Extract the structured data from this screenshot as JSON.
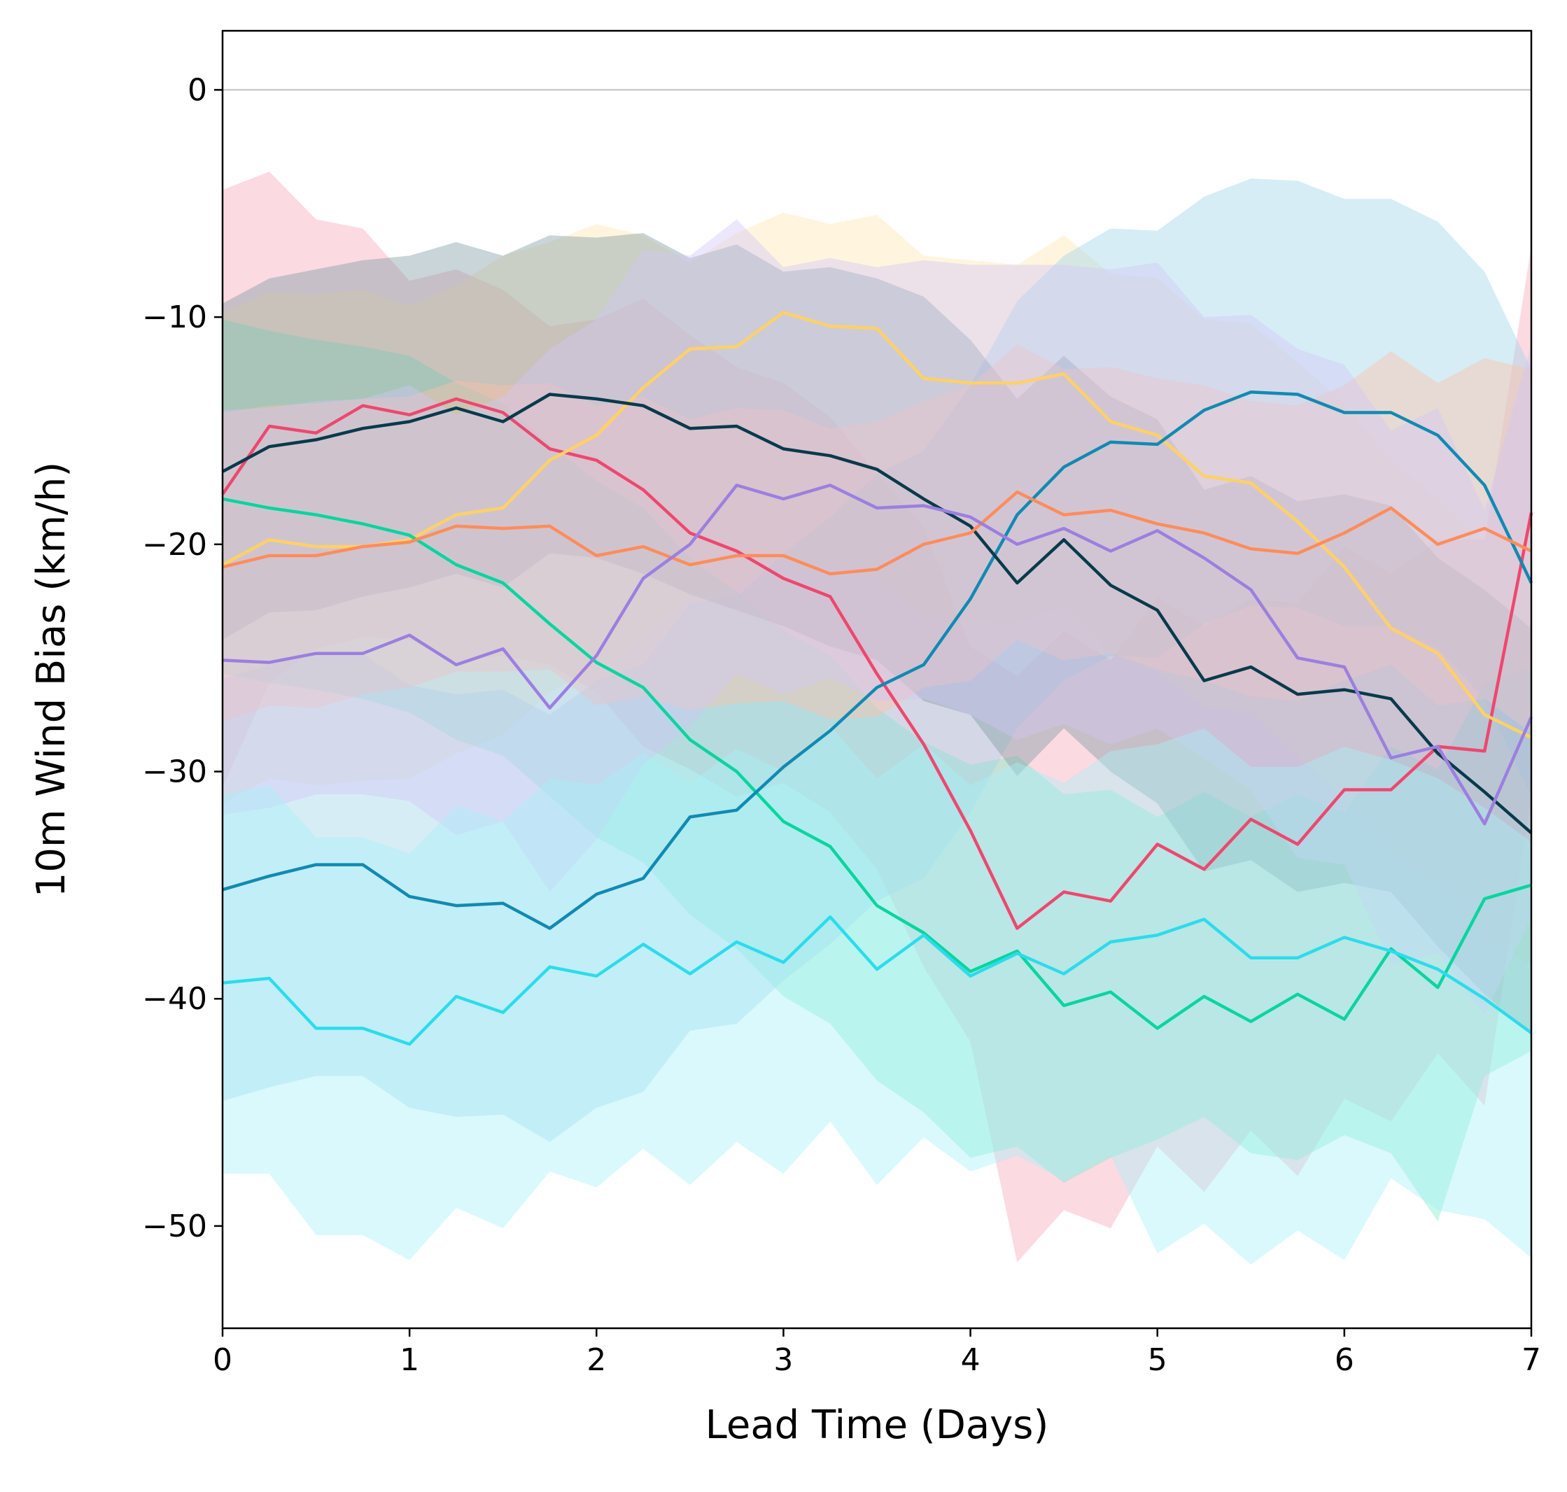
{
  "chart_data": {
    "type": "line",
    "title": "",
    "xlabel": "Lead Time (Days)",
    "ylabel": "10m Wind Bias (km/h)",
    "xlim": [
      0,
      7
    ],
    "ylim": [
      -54.5,
      2.6
    ],
    "xticks": [
      0,
      1,
      2,
      3,
      4,
      5,
      6,
      7
    ],
    "xtick_labels": [
      "0",
      "1",
      "2",
      "3",
      "4",
      "5",
      "6",
      "7"
    ],
    "yticks": [
      0,
      -10,
      -20,
      -30,
      -40,
      -50
    ],
    "ytick_labels": [
      "0",
      "−10",
      "−20",
      "−30",
      "−40",
      "−50"
    ],
    "zero_line": {
      "y": 0,
      "color": "#c0c0c0"
    },
    "grid": false,
    "legend": "none",
    "x": [
      0,
      0.25,
      0.5,
      0.75,
      1,
      1.25,
      1.5,
      1.75,
      2,
      2.25,
      2.5,
      2.75,
      3,
      3.25,
      3.5,
      3.75,
      4,
      4.25,
      4.5,
      4.75,
      5,
      5.25,
      5.5,
      5.75,
      6,
      6.25,
      6.5,
      6.75,
      7
    ],
    "series": [
      {
        "color": "#ef476f",
        "band_color": "#f7a8ba",
        "values": [
          -17.8,
          -14.8,
          -15.1,
          -13.9,
          -14.3,
          -13.6,
          -14.2,
          -15.8,
          -16.3,
          -17.6,
          -19.5,
          -20.3,
          -21.5,
          -22.3,
          -25.7,
          -28.8,
          -32.6,
          -36.9,
          -35.3,
          -35.7,
          -33.2,
          -34.3,
          -32.1,
          -33.2,
          -30.8,
          -30.8,
          -28.9,
          -29.1,
          -18.6
        ],
        "upper": [
          -4.4,
          -3.6,
          -5.7,
          -6.1,
          -8.4,
          -7.9,
          -8.8,
          -10.4,
          -10.1,
          -9.2,
          -10.8,
          -12.2,
          -12.9,
          -14.4,
          -16.9,
          -19.2,
          -24.5,
          -25.8,
          -23.8,
          -25.1,
          -22.3,
          -23.6,
          -22.4,
          -22.6,
          -20.1,
          -21.3,
          -19.8,
          -19.8,
          -6.9
        ],
        "lower": [
          -30.7,
          -26.1,
          -24.6,
          -24.1,
          -24.2,
          -25.2,
          -24.9,
          -25.3,
          -26.5,
          -28.9,
          -29.9,
          -31.1,
          -30.5,
          -31.8,
          -34.3,
          -38.6,
          -41.9,
          -51.6,
          -49.3,
          -50.1,
          -46.5,
          -48.5,
          -45.8,
          -47.8,
          -44.4,
          -45.4,
          -42.4,
          -44.7,
          -31.2
        ]
      },
      {
        "color": "#ffd166",
        "band_color": "#ffe8b3",
        "values": [
          -20.9,
          -19.8,
          -20.1,
          -20.1,
          -19.8,
          -18.7,
          -18.4,
          -16.3,
          -15.2,
          -13.1,
          -11.4,
          -11.3,
          -9.8,
          -10.4,
          -10.5,
          -12.7,
          -12.9,
          -12.9,
          -12.5,
          -14.6,
          -15.2,
          -17.0,
          -17.3,
          -19.0,
          -21.0,
          -23.7,
          -24.8,
          -27.5,
          -28.5
        ],
        "upper": [
          -9.8,
          -8.9,
          -9.0,
          -8.8,
          -9.5,
          -8.6,
          -7.3,
          -6.7,
          -5.9,
          -6.4,
          -7.6,
          -6.3,
          -5.4,
          -5.9,
          -5.5,
          -7.3,
          -7.5,
          -7.7,
          -6.4,
          -8.1,
          -8.3,
          -10.1,
          -10.3,
          -12.0,
          -13.8,
          -16.3,
          -18.0,
          -19.9,
          -18.9
        ],
        "lower": [
          -31.4,
          -30.3,
          -30.6,
          -30.4,
          -30.3,
          -29.2,
          -28.4,
          -26.5,
          -25.5,
          -24.1,
          -22.3,
          -21.9,
          -20.5,
          -21.0,
          -21.5,
          -23.2,
          -23.4,
          -23.5,
          -22.7,
          -24.8,
          -25.6,
          -27.2,
          -27.4,
          -29.3,
          -31.2,
          -33.6,
          -34.9,
          -37.4,
          -38.5
        ]
      },
      {
        "color": "#06d6a0",
        "band_color": "#7eecc8",
        "values": [
          -18.0,
          -18.4,
          -18.7,
          -19.1,
          -19.6,
          -20.9,
          -21.7,
          -23.5,
          -25.2,
          -26.3,
          -28.6,
          -30.0,
          -32.2,
          -33.3,
          -35.9,
          -37.1,
          -38.8,
          -37.9,
          -40.3,
          -39.7,
          -41.3,
          -39.9,
          -41.0,
          -39.8,
          -40.9,
          -37.8,
          -39.5,
          -35.6,
          -35.0
        ],
        "upper": [
          -10.1,
          -10.6,
          -11.0,
          -11.3,
          -11.7,
          -12.9,
          -13.8,
          -15.6,
          -17.2,
          -18.4,
          -20.6,
          -22.1,
          -23.8,
          -24.9,
          -27.2,
          -28.7,
          -29.7,
          -29.3,
          -31.0,
          -30.8,
          -32.0,
          -30.9,
          -32.0,
          -31.0,
          -31.8,
          -28.9,
          -29.9,
          -26.1,
          -25.4
        ],
        "lower": [
          -25.7,
          -26.1,
          -26.4,
          -26.8,
          -27.4,
          -28.6,
          -29.3,
          -31.1,
          -32.9,
          -34.0,
          -36.3,
          -37.8,
          -39.9,
          -41.1,
          -43.6,
          -45.0,
          -47.0,
          -46.5,
          -48.1,
          -47.0,
          -46.2,
          -45.2,
          -46.8,
          -47.1,
          -46.0,
          -46.8,
          -49.8,
          -43.4,
          -42.3
        ]
      },
      {
        "color": "#118ab2",
        "band_color": "#9ed5ea",
        "values": [
          -35.2,
          -34.6,
          -34.1,
          -34.1,
          -35.5,
          -35.9,
          -35.8,
          -36.9,
          -35.4,
          -34.7,
          -32.0,
          -31.7,
          -29.8,
          -28.2,
          -26.3,
          -25.3,
          -22.4,
          -18.7,
          -16.6,
          -15.5,
          -15.6,
          -14.1,
          -13.3,
          -13.4,
          -14.2,
          -14.2,
          -15.2,
          -17.4,
          -21.7
        ],
        "upper": [
          -25.9,
          -25.3,
          -24.8,
          -24.8,
          -26.2,
          -26.6,
          -26.4,
          -27.5,
          -26.0,
          -25.3,
          -22.6,
          -22.3,
          -20.4,
          -18.8,
          -16.9,
          -15.9,
          -13.0,
          -9.3,
          -7.3,
          -6.1,
          -6.2,
          -4.7,
          -3.9,
          -4.0,
          -4.8,
          -4.8,
          -5.8,
          -8.0,
          -12.3
        ],
        "lower": [
          -44.5,
          -43.9,
          -43.4,
          -43.4,
          -44.8,
          -45.2,
          -45.1,
          -46.3,
          -44.8,
          -44.1,
          -41.4,
          -41.1,
          -39.2,
          -37.6,
          -35.7,
          -34.7,
          -31.8,
          -28.1,
          -26.0,
          -24.9,
          -25.0,
          -23.5,
          -22.7,
          -22.8,
          -23.6,
          -23.6,
          -24.6,
          -26.8,
          -31.1
        ]
      },
      {
        "color": "#073b4c",
        "band_color": "#7f9aa3",
        "values": [
          -16.8,
          -15.7,
          -15.4,
          -14.9,
          -14.6,
          -14.0,
          -14.6,
          -13.4,
          -13.6,
          -13.9,
          -14.9,
          -14.8,
          -15.8,
          -16.1,
          -16.7,
          -18.0,
          -19.2,
          -21.7,
          -19.8,
          -21.8,
          -22.9,
          -26.0,
          -25.4,
          -26.6,
          -26.4,
          -26.8,
          -29.2,
          -30.9,
          -32.7
        ],
        "upper": [
          -9.4,
          -8.3,
          -7.9,
          -7.5,
          -7.3,
          -6.7,
          -7.3,
          -6.4,
          -6.5,
          -6.3,
          -7.4,
          -6.8,
          -8.0,
          -7.8,
          -8.3,
          -9.1,
          -11.0,
          -13.6,
          -11.7,
          -13.5,
          -14.5,
          -17.6,
          -17.0,
          -18.1,
          -17.8,
          -18.3,
          -20.6,
          -22.0,
          -23.7
        ],
        "lower": [
          -24.2,
          -23.0,
          -22.9,
          -22.3,
          -21.9,
          -21.3,
          -21.9,
          -20.4,
          -20.6,
          -21.3,
          -22.2,
          -22.9,
          -23.6,
          -24.5,
          -25.1,
          -26.9,
          -27.5,
          -30.2,
          -28.1,
          -30.0,
          -31.4,
          -34.4,
          -33.9,
          -35.3,
          -34.9,
          -35.3,
          -37.7,
          -39.8,
          -41.6
        ]
      },
      {
        "color": "#ff8c5a",
        "band_color": "#ffc2a6",
        "values": [
          -21.0,
          -20.5,
          -20.5,
          -20.1,
          -19.9,
          -19.2,
          -19.3,
          -19.2,
          -20.5,
          -20.1,
          -20.9,
          -20.5,
          -20.5,
          -21.3,
          -21.1,
          -20.0,
          -19.5,
          -17.7,
          -18.7,
          -18.5,
          -19.1,
          -19.5,
          -20.2,
          -20.4,
          -19.5,
          -18.4,
          -20.0,
          -19.3,
          -20.3
        ],
        "upper": [
          -14.2,
          -13.9,
          -13.8,
          -13.6,
          -13.5,
          -12.8,
          -13.0,
          -12.9,
          -13.9,
          -13.5,
          -14.5,
          -14.0,
          -14.1,
          -14.9,
          -14.6,
          -13.7,
          -13.0,
          -11.2,
          -12.3,
          -12.2,
          -12.7,
          -13.0,
          -13.7,
          -13.9,
          -13.0,
          -11.5,
          -12.9,
          -11.8,
          -12.3
        ],
        "lower": [
          -27.8,
          -27.1,
          -27.2,
          -26.6,
          -26.3,
          -25.6,
          -25.6,
          -25.5,
          -27.1,
          -26.7,
          -27.3,
          -27.0,
          -26.9,
          -27.7,
          -27.6,
          -26.3,
          -26.0,
          -24.2,
          -25.1,
          -24.8,
          -25.5,
          -26.0,
          -26.7,
          -26.9,
          -26.0,
          -25.3,
          -27.1,
          -26.8,
          -28.3
        ]
      },
      {
        "color": "#9b7fe0",
        "band_color": "#d2c6f5",
        "values": [
          -25.1,
          -25.2,
          -24.8,
          -24.8,
          -24.0,
          -25.3,
          -24.6,
          -27.2,
          -24.9,
          -21.5,
          -20.0,
          -17.4,
          -18.0,
          -17.4,
          -18.4,
          -18.3,
          -18.8,
          -20.0,
          -19.3,
          -20.3,
          -19.4,
          -20.6,
          -22.0,
          -25.0,
          -25.4,
          -29.4,
          -28.9,
          -32.3,
          -27.6
        ],
        "upper": [
          -14.1,
          -14.0,
          -13.7,
          -13.6,
          -13.0,
          -14.3,
          -13.5,
          -11.4,
          -10.1,
          -7.0,
          -7.3,
          -5.7,
          -7.8,
          -7.4,
          -7.8,
          -7.5,
          -7.7,
          -7.7,
          -7.7,
          -7.9,
          -7.6,
          -10.0,
          -9.9,
          -11.4,
          -12.1,
          -15.0,
          -14.0,
          -18.5,
          -11.2
        ],
        "lower": [
          -31.9,
          -31.6,
          -31.0,
          -31.0,
          -31.3,
          -32.8,
          -32.2,
          -35.3,
          -33.0,
          -29.7,
          -28.0,
          -25.7,
          -26.6,
          -25.9,
          -26.9,
          -26.8,
          -27.5,
          -28.6,
          -27.9,
          -28.8,
          -28.1,
          -29.4,
          -30.8,
          -33.8,
          -34.1,
          -38.5,
          -38.0,
          -40.7,
          -36.4
        ]
      },
      {
        "color": "#2bdcec",
        "band_color": "#a8f0f7",
        "values": [
          -39.3,
          -39.1,
          -41.3,
          -41.3,
          -42.0,
          -39.9,
          -40.6,
          -38.6,
          -39.0,
          -37.6,
          -38.9,
          -37.5,
          -38.4,
          -36.4,
          -38.7,
          -37.2,
          -39.0,
          -38.0,
          -38.9,
          -37.5,
          -37.2,
          -36.5,
          -38.2,
          -38.2,
          -37.3,
          -37.9,
          -38.7,
          -40.0,
          -41.5
        ],
        "upper": [
          -31.0,
          -30.6,
          -32.9,
          -32.9,
          -33.6,
          -31.5,
          -32.2,
          -30.3,
          -30.6,
          -29.2,
          -30.5,
          -29.0,
          -30.0,
          -28.0,
          -30.3,
          -28.8,
          -30.6,
          -29.6,
          -30.5,
          -29.1,
          -28.8,
          -28.1,
          -29.8,
          -29.8,
          -28.9,
          -29.5,
          -30.3,
          -31.6,
          -33.1
        ],
        "lower": [
          -47.7,
          -47.7,
          -50.4,
          -50.4,
          -51.5,
          -49.2,
          -50.1,
          -47.6,
          -48.3,
          -46.6,
          -48.2,
          -46.3,
          -47.7,
          -45.4,
          -48.2,
          -46.1,
          -47.6,
          -46.9,
          -48.0,
          -46.9,
          -51.2,
          -49.9,
          -51.7,
          -50.2,
          -51.5,
          -47.9,
          -49.3,
          -49.7,
          -51.4
        ]
      }
    ]
  }
}
